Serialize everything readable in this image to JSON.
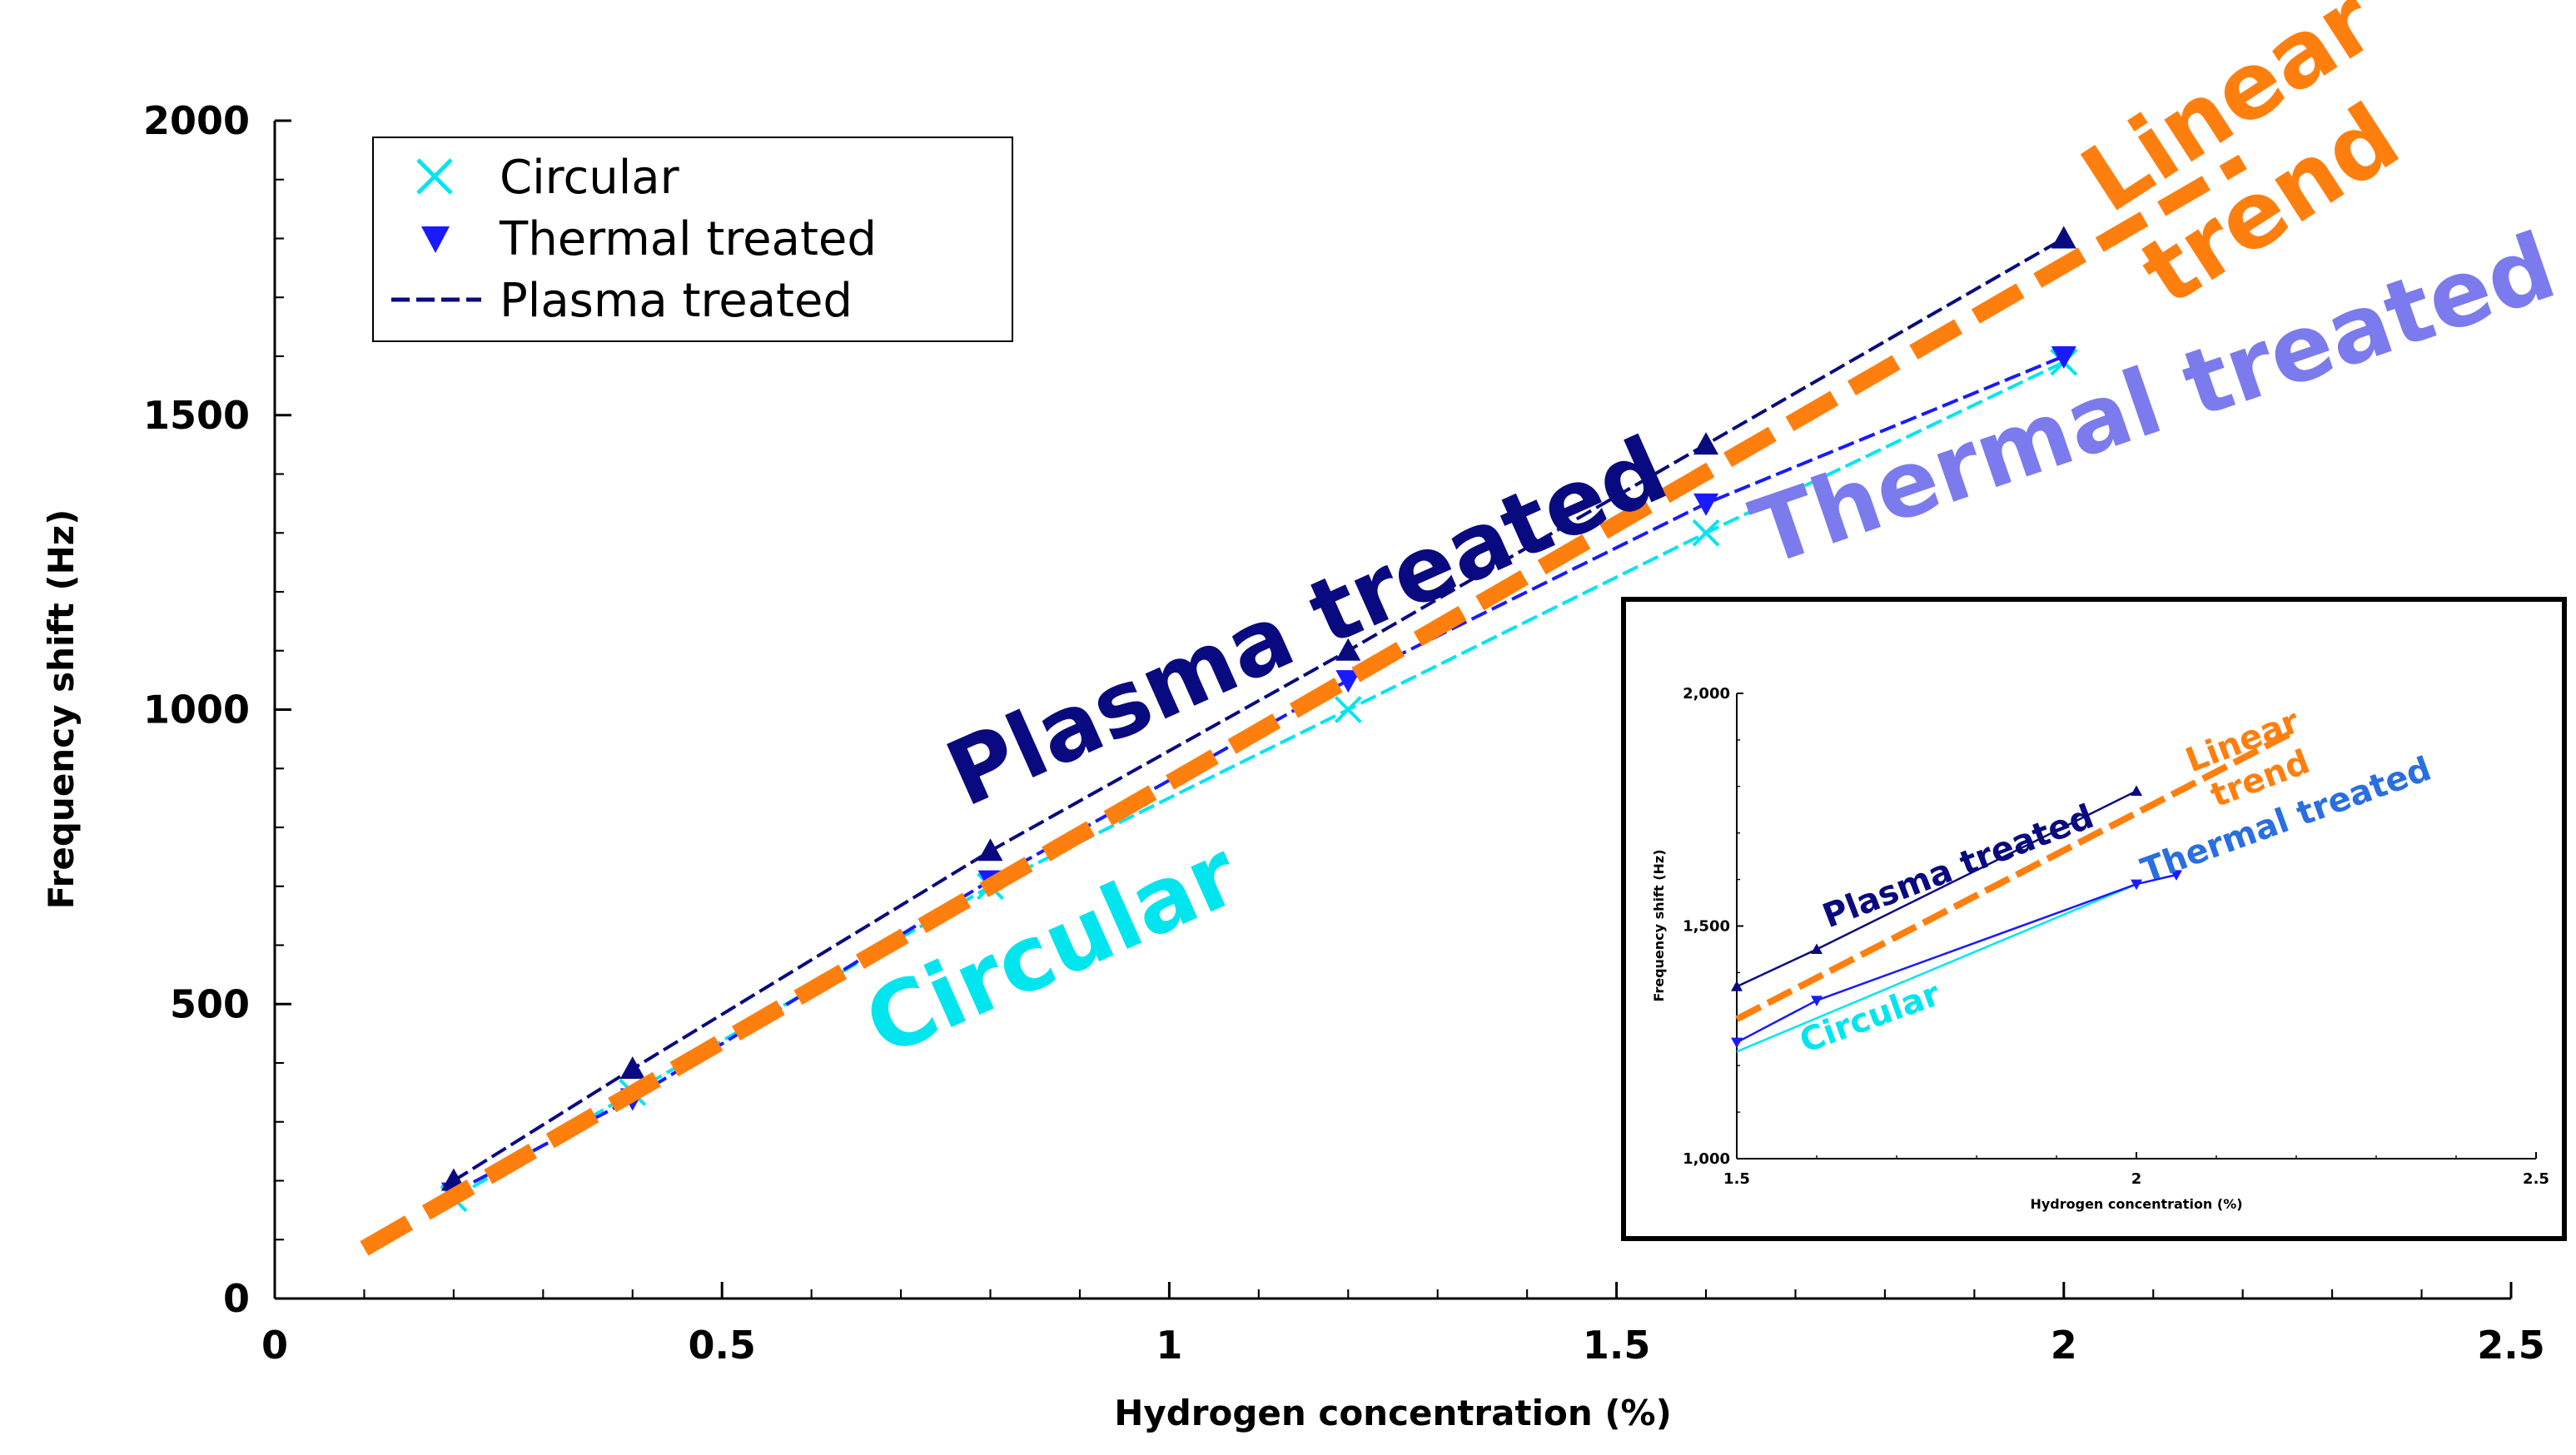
{
  "chart_data": [
    {
      "type": "line",
      "title": "",
      "xlabel": "Hydrogen concentration (%)",
      "ylabel": "Frequency shift (Hz)",
      "xlim": [
        0,
        2.5
      ],
      "ylim": [
        0,
        2000
      ],
      "xticks": [
        0,
        0.5,
        1,
        1.5,
        2,
        2.5
      ],
      "xtick_labels": [
        "0",
        "0.5",
        "1",
        "1.5",
        "2",
        "2.5"
      ],
      "yticks": [
        0,
        500,
        1000,
        1500,
        2000
      ],
      "ytick_labels": [
        "0",
        "500",
        "1000",
        "1500",
        "2000"
      ],
      "grid": false,
      "legend_position": "top-left",
      "legend": [
        "Circular",
        "Thermal treated",
        "Plasma treated"
      ],
      "series": [
        {
          "name": "Circular",
          "color": "#00e5ee",
          "marker": "x",
          "x": [
            0.2,
            0.4,
            0.8,
            1.2,
            1.6,
            2.0
          ],
          "y": [
            170,
            350,
            700,
            1000,
            1300,
            1590
          ]
        },
        {
          "name": "Thermal treated",
          "color": "#1a1aff",
          "marker": "triangle-down",
          "x": [
            0.2,
            0.4,
            0.8,
            1.2,
            1.6,
            2.0
          ],
          "y": [
            180,
            340,
            710,
            1050,
            1350,
            1600
          ]
        },
        {
          "name": "Plasma treated",
          "color": "#0a0a80",
          "marker": "triangle-up",
          "x": [
            0.2,
            0.4,
            0.8,
            1.2,
            1.6,
            2.0
          ],
          "y": [
            200,
            390,
            760,
            1100,
            1450,
            1800
          ]
        },
        {
          "name": "Linear trend",
          "color": "#ff7f0e",
          "marker": "none",
          "x": [
            0.1,
            2.2
          ],
          "y": [
            85,
            1930
          ]
        }
      ],
      "annotations": [
        {
          "text": "Plasma treated",
          "color": "#0a0a80"
        },
        {
          "text": "Thermal treated",
          "color": "#7b7bee"
        },
        {
          "text": "Circular",
          "color": "#00e5ee"
        },
        {
          "text": "Linear",
          "color": "#ff7f0e"
        },
        {
          "text": "trend",
          "color": "#ff7f0e"
        }
      ]
    },
    {
      "type": "line",
      "title": "",
      "xlabel": "Hydrogen concentration (%)",
      "ylabel": "Frequency shift (Hz)",
      "xlim": [
        1.5,
        2.5
      ],
      "ylim": [
        1000,
        2000
      ],
      "xticks": [
        1.5,
        2,
        2.5
      ],
      "xtick_labels": [
        "1.5",
        "2",
        "2.5"
      ],
      "yticks": [
        1000,
        1500,
        2000
      ],
      "ytick_labels": [
        "1,000",
        "1,500",
        "2,000"
      ],
      "grid": false,
      "series": [
        {
          "name": "Circular",
          "color": "#00e5ee",
          "marker": "none",
          "x": [
            1.5,
            2.0
          ],
          "y": [
            1230,
            1590
          ]
        },
        {
          "name": "Thermal treated",
          "color": "#1a1aff",
          "marker": "triangle-down",
          "x": [
            1.5,
            1.6,
            2.0,
            2.05
          ],
          "y": [
            1250,
            1340,
            1590,
            1610
          ]
        },
        {
          "name": "Plasma treated",
          "color": "#0a0a80",
          "marker": "triangle-up",
          "x": [
            1.5,
            1.6,
            2.0
          ],
          "y": [
            1370,
            1450,
            1790
          ]
        },
        {
          "name": "Linear trend",
          "color": "#ff7f0e",
          "marker": "none",
          "x": [
            1.5,
            2.2
          ],
          "y": [
            1300,
            1920
          ]
        }
      ],
      "annotations": [
        {
          "text": "Plasma treated",
          "color": "#0a0a80"
        },
        {
          "text": "Thermal treated",
          "color": "#2a6ee0"
        },
        {
          "text": "Circular",
          "color": "#00e5ee"
        },
        {
          "text": "Linear",
          "color": "#ff7f0e"
        },
        {
          "text": "trend",
          "color": "#ff7f0e"
        }
      ]
    }
  ]
}
